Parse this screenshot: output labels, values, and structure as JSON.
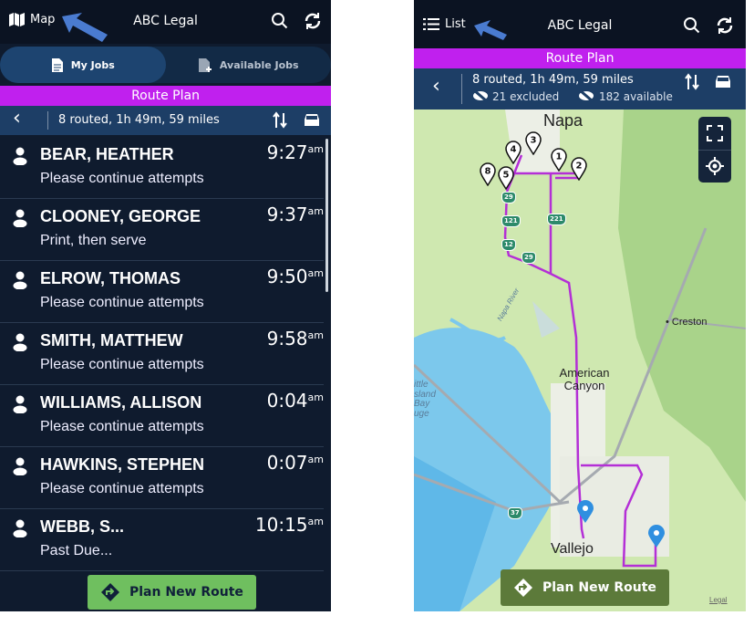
{
  "app_title": "ABC Legal",
  "colors": {
    "header": "#0b1322",
    "route_plan_bar": "#c020ee",
    "info_bar": "#1d3e66",
    "route_line": "#b42fd6",
    "list_button": "#6fbf5f",
    "map_button": "#5c7a3a",
    "pointer_arrow": "#4a7bd0"
  },
  "list_view": {
    "toggle_label": "Map",
    "toggle_icon": "map-icon",
    "tabs": [
      {
        "label": "My Jobs",
        "active": true,
        "icon": "document-icon"
      },
      {
        "label": "Available Jobs",
        "active": false,
        "icon": "document-add-icon"
      }
    ],
    "route_plan_title": "Route Plan",
    "summary": "8 routed, 1h 49m, 59 miles",
    "jobs": [
      {
        "name": "BEAR, HEATHER",
        "time": "9:27",
        "ampm": "am",
        "note": "Please continue attempts"
      },
      {
        "name": "CLOONEY, GEORGE",
        "time": "9:37",
        "ampm": "am",
        "note": "Print, then serve"
      },
      {
        "name": "ELROW, THOMAS",
        "time": "9:50",
        "ampm": "am",
        "note": "Please continue attempts"
      },
      {
        "name": "SMITH, MATTHEW",
        "time": "9:58",
        "ampm": "am",
        "note": "Please continue attempts"
      },
      {
        "name": "WILLIAMS, ALLISON",
        "time": "0:04",
        "ampm": "am",
        "note": "Please continue attempts"
      },
      {
        "name": "HAWKINS, STEPHEN",
        "time": "0:07",
        "ampm": "am",
        "note": "Please continue attempts"
      },
      {
        "name": "WEBB, S...",
        "time": "10:15",
        "ampm": "am",
        "note": "Past Due..."
      }
    ],
    "plan_button": "Plan New Route"
  },
  "map_view": {
    "toggle_label": "List",
    "toggle_icon": "list-icon",
    "route_plan_title": "Route Plan",
    "summary": "8 routed, 1h 49m, 59 miles",
    "excluded": "21 excluded",
    "available": "182 available",
    "places": {
      "napa": "Napa",
      "creston": "Creston",
      "american_canyon": "American Canyon",
      "vallejo": "Vallejo",
      "little_island": "ittle sland Bay uge",
      "river": "Napa River"
    },
    "pins": [
      "1",
      "2",
      "3",
      "4",
      "5",
      "8"
    ],
    "highways": [
      "29",
      "121",
      "221",
      "12",
      "29",
      "37"
    ],
    "plan_button": "Plan New Route",
    "legal": "Legal"
  }
}
